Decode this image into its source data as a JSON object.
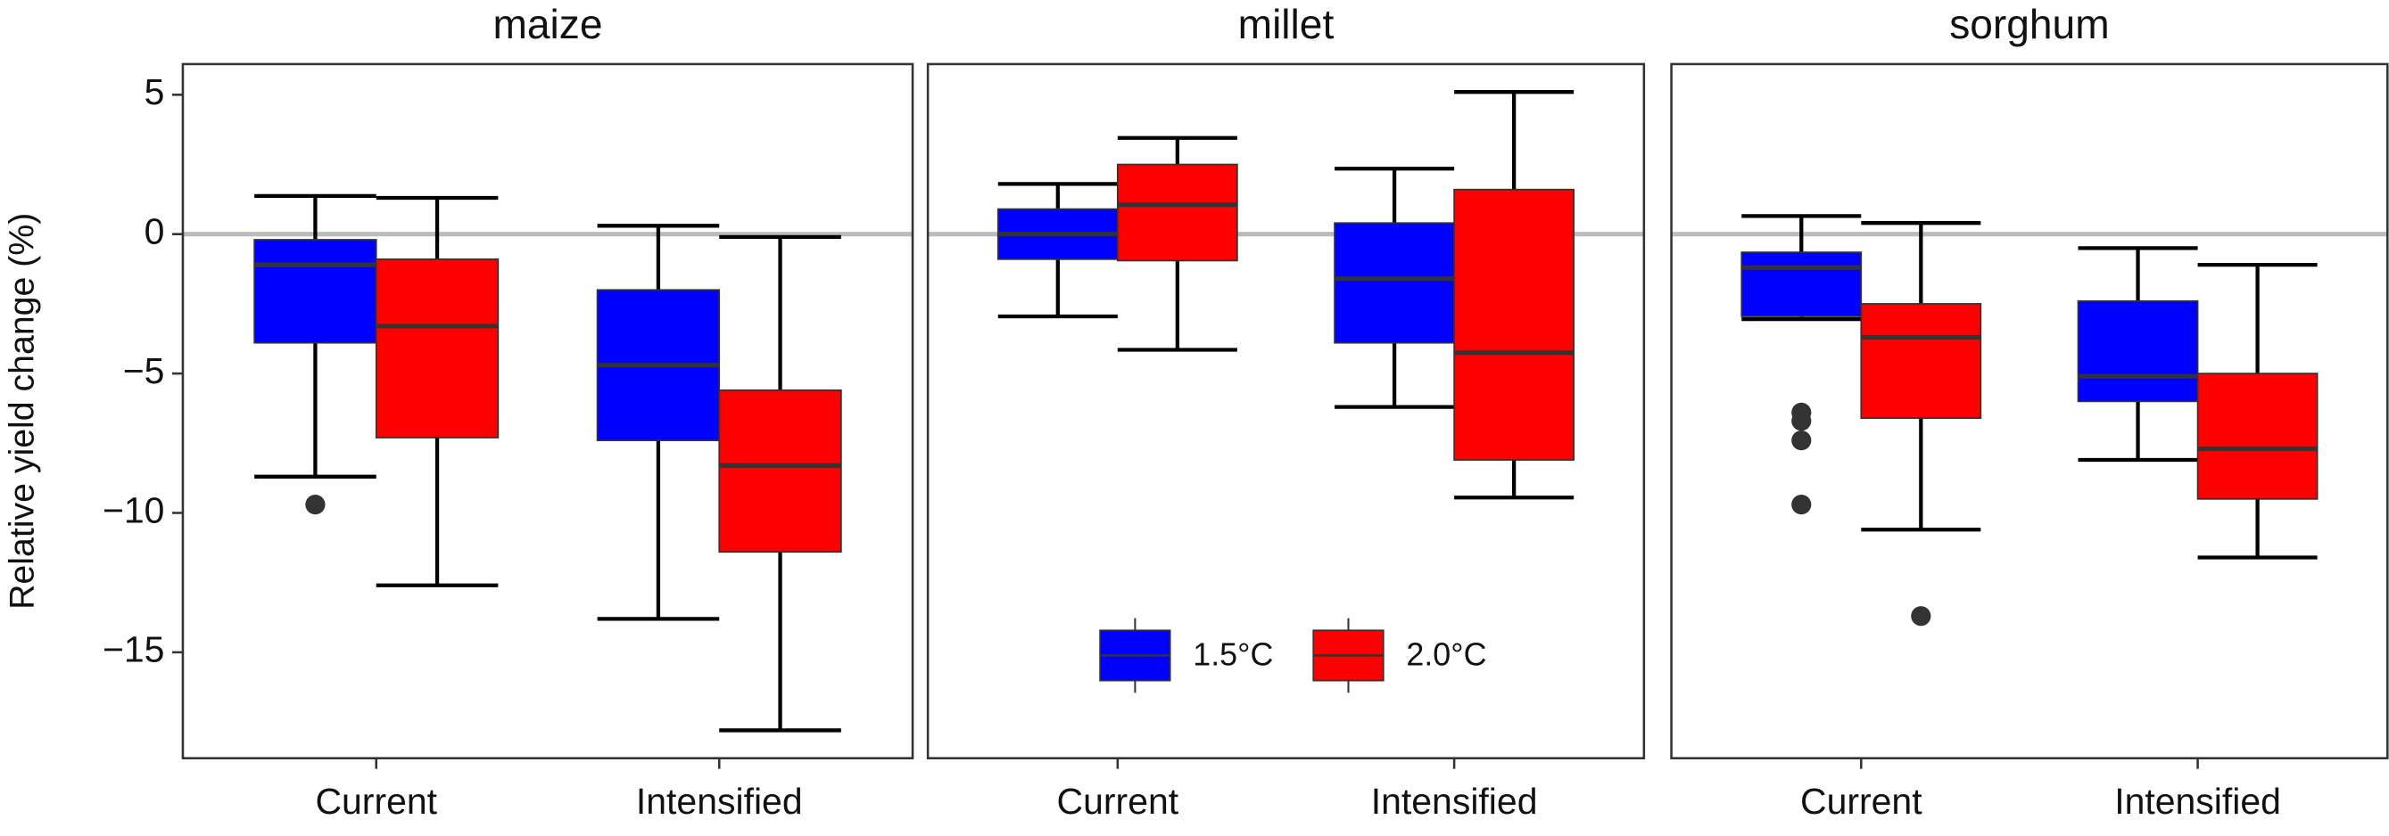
{
  "chart_data": [
    {
      "type": "box",
      "title": "maize",
      "ylabel": "Relative yield change (%)",
      "categories": [
        "Current",
        "Intensified"
      ],
      "ylim": [
        -18.8,
        6.1
      ],
      "yticks": [
        {
          "value": -15,
          "label": "−15"
        },
        {
          "value": -10,
          "label": "−10"
        },
        {
          "value": -5,
          "label": "−5"
        },
        0,
        5
      ],
      "hline": 0,
      "series": [
        {
          "color": "#0000ff",
          "low": [
            -8.7,
            -13.8
          ],
          "q1": [
            -3.9,
            -7.4
          ],
          "median": [
            -1.1,
            -4.7
          ],
          "q3": [
            -0.2,
            -2.0
          ],
          "high": [
            1.37,
            0.3
          ],
          "outliers": [
            [
              -9.7
            ],
            []
          ]
        },
        {
          "color": "#ff0000",
          "low": [
            -12.6,
            -17.8
          ],
          "q1": [
            -7.3,
            -11.4
          ],
          "median": [
            -3.3,
            -8.3
          ],
          "q3": [
            -0.9,
            -5.6
          ],
          "high": [
            1.3,
            -0.1
          ],
          "outliers": [
            [],
            []
          ]
        }
      ]
    },
    {
      "type": "box",
      "title": "millet",
      "categories": [
        "Current",
        "Intensified"
      ],
      "ylim": [
        -18.8,
        6.1
      ],
      "hline": 0,
      "legend": "bottom",
      "series": [
        {
          "name": "1.5°C",
          "color": "#0000ff",
          "low": [
            -2.95,
            -6.2
          ],
          "q1": [
            -0.9,
            -3.9
          ],
          "median": [
            0,
            -1.6
          ],
          "q3": [
            0.9,
            0.4
          ],
          "high": [
            1.8,
            2.35
          ],
          "outliers": [
            [],
            []
          ]
        },
        {
          "name": "2.0°C",
          "color": "#ff0000",
          "low": [
            -4.15,
            -9.45
          ],
          "q1": [
            -0.95,
            -8.1
          ],
          "median": [
            1.05,
            -4.25
          ],
          "q3": [
            2.5,
            1.6
          ],
          "high": [
            3.45,
            5.1
          ],
          "outliers": [
            [],
            []
          ]
        }
      ]
    },
    {
      "type": "box",
      "title": "sorghum",
      "categories": [
        "Current",
        "Intensified"
      ],
      "ylim": [
        -18.8,
        6.1
      ],
      "hline": 0,
      "series": [
        {
          "color": "#0000ff",
          "low": [
            -3.05,
            -8.1
          ],
          "q1": [
            -2.95,
            -6.0
          ],
          "median": [
            -1.2,
            -5.1
          ],
          "q3": [
            -0.65,
            -2.4
          ],
          "high": [
            0.65,
            -0.5
          ],
          "outliers": [
            [
              -6.4,
              -6.7,
              -7.4,
              -9.7
            ],
            []
          ]
        },
        {
          "color": "#ff0000",
          "low": [
            -10.6,
            -11.6
          ],
          "q1": [
            -6.6,
            -9.5
          ],
          "median": [
            -3.7,
            -7.7
          ],
          "q3": [
            -2.5,
            -5.0
          ],
          "high": [
            0.4,
            -1.1
          ],
          "outliers": [
            [
              -13.7
            ],
            []
          ]
        }
      ]
    }
  ]
}
